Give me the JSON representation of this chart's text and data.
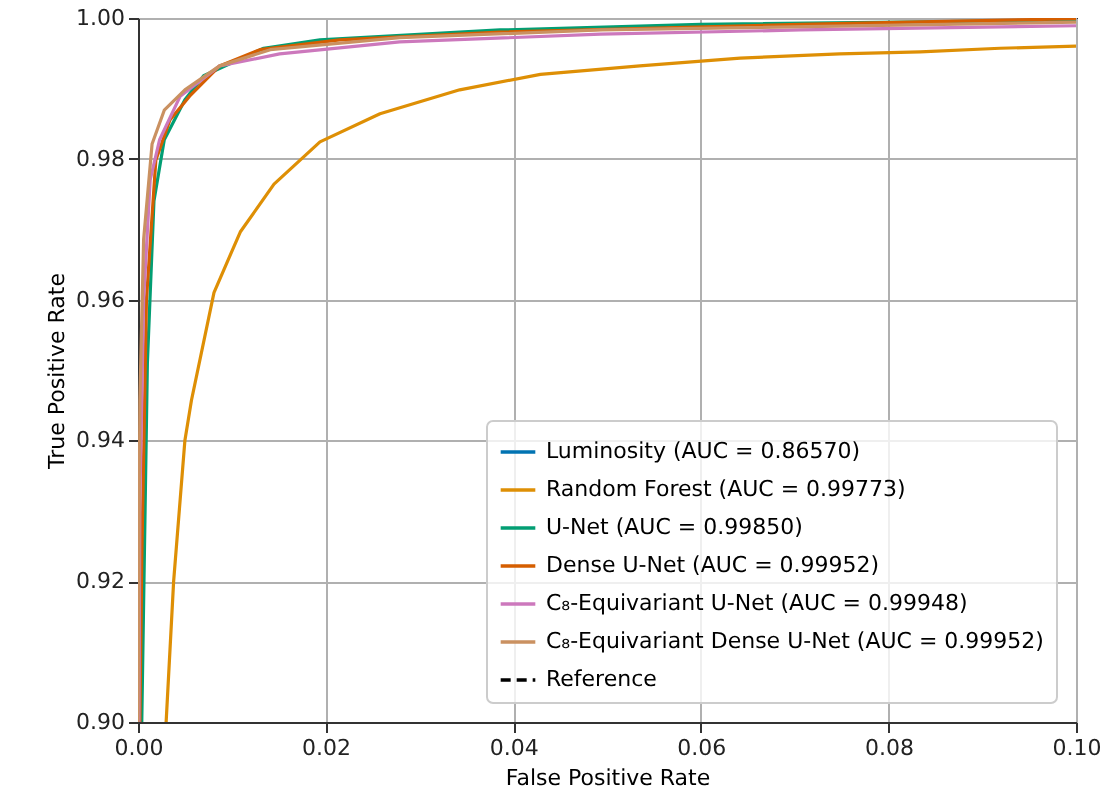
{
  "chart_data": {
    "type": "line",
    "xlabel": "False Positive Rate",
    "ylabel": "True Positive Rate",
    "xlim": [
      0,
      0.1
    ],
    "ylim": [
      0.9,
      1.0
    ],
    "xticks": [
      {
        "value": 0,
        "label": "0.00"
      },
      {
        "value": 0.02,
        "label": "0.02"
      },
      {
        "value": 0.04,
        "label": "0.04"
      },
      {
        "value": 0.06,
        "label": "0.06"
      },
      {
        "value": 0.08,
        "label": "0.08"
      },
      {
        "value": 0.1,
        "label": "0.10"
      }
    ],
    "yticks": [
      {
        "value": 0.9,
        "label": "0.90"
      },
      {
        "value": 0.92,
        "label": "0.92"
      },
      {
        "value": 0.94,
        "label": "0.94"
      },
      {
        "value": 0.96,
        "label": "0.96"
      },
      {
        "value": 0.98,
        "label": "0.98"
      },
      {
        "value": 1.0,
        "label": "1.00"
      }
    ],
    "grid": true,
    "legend": "bottom right",
    "series": [
      {
        "name": "Luminosity (AUC = 0.86570)",
        "color": "#0173b2"
      },
      {
        "name": "Random Forest (AUC = 0.99773)",
        "color": "#de8f05",
        "x": [
          0.003,
          0.0038,
          0.005,
          0.0057,
          0.0081,
          0.0109,
          0.0145,
          0.0194,
          0.0258,
          0.0343,
          0.0429,
          0.0535,
          0.0642,
          0.0748,
          0.0834,
          0.0919,
          0.1
        ],
        "values": [
          0.9,
          0.92,
          0.94,
          0.9457,
          0.961,
          0.9696,
          0.9764,
          0.9824,
          0.9864,
          0.9898,
          0.992,
          0.9932,
          0.9943,
          0.9949,
          0.9952,
          0.9957,
          0.996
        ]
      },
      {
        "name": "U-Net (AUC = 0.99850)",
        "color": "#029e73",
        "x": [
          0.0004,
          0.0006,
          0.001,
          0.0017,
          0.0028,
          0.005,
          0.007,
          0.0134,
          0.0194,
          0.0386,
          0.06,
          0.1
        ],
        "values": [
          0.9,
          0.917,
          0.951,
          0.974,
          0.9827,
          0.9884,
          0.9918,
          0.9957,
          0.9969,
          0.9983,
          0.9991,
          0.9997
        ]
      },
      {
        "name": "Dense U-Net (AUC = 0.99952)",
        "color": "#d55e00",
        "x": [
          0.0002,
          0.0004,
          0.0009,
          0.0019,
          0.0034,
          0.0055,
          0.0087,
          0.013,
          0.0215,
          0.0386,
          0.0706,
          0.1
        ],
        "values": [
          0.9,
          0.923,
          0.96,
          0.9798,
          0.9855,
          0.9889,
          0.9932,
          0.9955,
          0.9969,
          0.998,
          0.9991,
          0.9999
        ]
      },
      {
        "name": "C₈-Equivariant U-Net (AUC = 0.99948)",
        "color": "#cc78bc",
        "x": [
          0.0001,
          0.0002,
          0.0006,
          0.0013,
          0.0023,
          0.0045,
          0.0087,
          0.0151,
          0.0279,
          0.0493,
          0.0706,
          0.1
        ],
        "values": [
          0.9,
          0.9315,
          0.96,
          0.977,
          0.9827,
          0.9889,
          0.9932,
          0.9949,
          0.9966,
          0.9977,
          0.9983,
          0.9989
        ]
      },
      {
        "name": "C₈-Equivariant Dense U-Net (AUC = 0.99952)",
        "color": "#ca9161",
        "x": [
          0.0,
          0.0002,
          0.0006,
          0.0015,
          0.0028,
          0.005,
          0.0087,
          0.0141,
          0.0279,
          0.0493,
          0.1
        ],
        "values": [
          0.9,
          0.9457,
          0.9685,
          0.9821,
          0.9869,
          0.9898,
          0.9932,
          0.9955,
          0.9972,
          0.9983,
          0.9994
        ]
      },
      {
        "name": "Reference",
        "color": "#000000",
        "line_style": "dashed"
      }
    ]
  }
}
